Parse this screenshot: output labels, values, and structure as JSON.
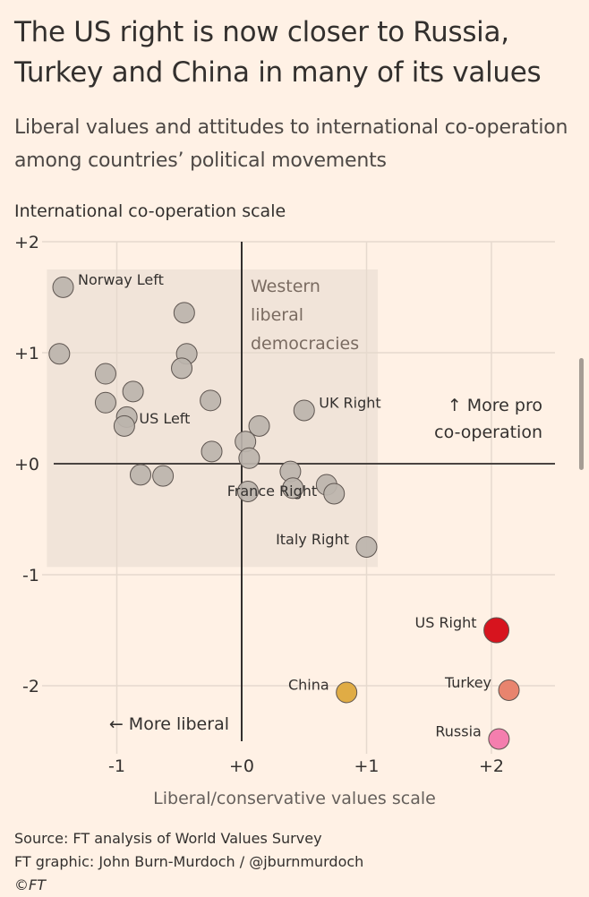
{
  "header": {
    "title": "The US right is now closer to Russia, Turkey and China in many of its values",
    "subtitle": "Liberal values and attitudes to international co-operation among countries’ political movements"
  },
  "footer": {
    "source": "Source: FT analysis of World Values Survey",
    "credit": "FT graphic: John Burn-Murdoch / @jburnmurdoch",
    "copyright": "©FT"
  },
  "chart_data": {
    "type": "scatter",
    "title": "The US right is now closer to Russia, Turkey and China in many of its values",
    "subtitle": "Liberal values and attitudes to international co-operation among countries’ political movements",
    "xlabel": "Liberal/conservative values scale",
    "ylabel": "International co-operation scale",
    "xlim": [
      -1.55,
      2.5
    ],
    "ylim": [
      -2.5,
      2
    ],
    "xticks": [
      -1,
      0,
      1,
      2
    ],
    "xtick_labels": [
      "-1",
      "+0",
      "+1",
      "+2"
    ],
    "yticks": [
      2,
      1,
      0,
      -1,
      -2
    ],
    "ytick_labels": [
      "+2",
      "+1",
      "+0",
      "-1",
      "-2"
    ],
    "grid": true,
    "region": {
      "label": "Western liberal democracies",
      "x": [
        -1.56,
        1.09
      ],
      "y": [
        -0.93,
        1.75
      ],
      "color": "#EFE2D7"
    },
    "annotations": [
      {
        "text": "↑ More pro co-operation",
        "lines": [
          "↑  More pro",
          "co-operation"
        ],
        "x": 2.4,
        "y": 0.55
      },
      {
        "text": "← More liberal",
        "x": -0.1,
        "y": -2.33
      }
    ],
    "colors": {
      "default": "#BCB4AC",
      "stroke": "#5e5550",
      "axis": "#4a4441",
      "grid": "#E6D9CE"
    },
    "points": [
      {
        "label": "Norway Left",
        "x": -1.43,
        "y": 1.59,
        "label_pos": "right"
      },
      {
        "label": "",
        "x": -0.46,
        "y": 1.36
      },
      {
        "label": "",
        "x": -1.46,
        "y": 0.99
      },
      {
        "label": "",
        "x": -0.44,
        "y": 0.99
      },
      {
        "label": "",
        "x": -0.48,
        "y": 0.86
      },
      {
        "label": "",
        "x": -1.09,
        "y": 0.81
      },
      {
        "label": "",
        "x": -0.87,
        "y": 0.65
      },
      {
        "label": "",
        "x": -0.25,
        "y": 0.57
      },
      {
        "label": "",
        "x": -1.09,
        "y": 0.55
      },
      {
        "label": "",
        "x": -0.92,
        "y": 0.42
      },
      {
        "label": "US Left",
        "x": -0.94,
        "y": 0.34,
        "label_pos": "right"
      },
      {
        "label": "UK Right",
        "x": 0.5,
        "y": 0.48,
        "label_pos": "right"
      },
      {
        "label": "",
        "x": 0.14,
        "y": 0.34
      },
      {
        "label": "",
        "x": 0.03,
        "y": 0.2
      },
      {
        "label": "",
        "x": -0.24,
        "y": 0.11
      },
      {
        "label": "",
        "x": 0.06,
        "y": 0.05
      },
      {
        "label": "",
        "x": -0.81,
        "y": -0.1
      },
      {
        "label": "",
        "x": -0.63,
        "y": -0.11
      },
      {
        "label": "",
        "x": 0.39,
        "y": -0.07
      },
      {
        "label": "",
        "x": 0.41,
        "y": -0.22
      },
      {
        "label": "",
        "x": 0.68,
        "y": -0.19
      },
      {
        "label": "",
        "x": 0.74,
        "y": -0.27
      },
      {
        "label": "France Right",
        "x": 0.05,
        "y": -0.25,
        "label_pos": "center"
      },
      {
        "label": "Italy Right",
        "x": 1.0,
        "y": -0.75,
        "label_pos": "left"
      },
      {
        "label": "US Right",
        "x": 2.04,
        "y": -1.5,
        "label_pos": "left",
        "color": "#D7141E",
        "highlight": true
      },
      {
        "label": "China",
        "x": 0.84,
        "y": -2.06,
        "label_pos": "left",
        "color": "#E0AC45"
      },
      {
        "label": "Turkey",
        "x": 2.14,
        "y": -2.04,
        "label_pos": "left",
        "color": "#E8846E"
      },
      {
        "label": "Russia",
        "x": 2.06,
        "y": -2.48,
        "label_pos": "left",
        "color": "#F47EAE"
      }
    ]
  }
}
